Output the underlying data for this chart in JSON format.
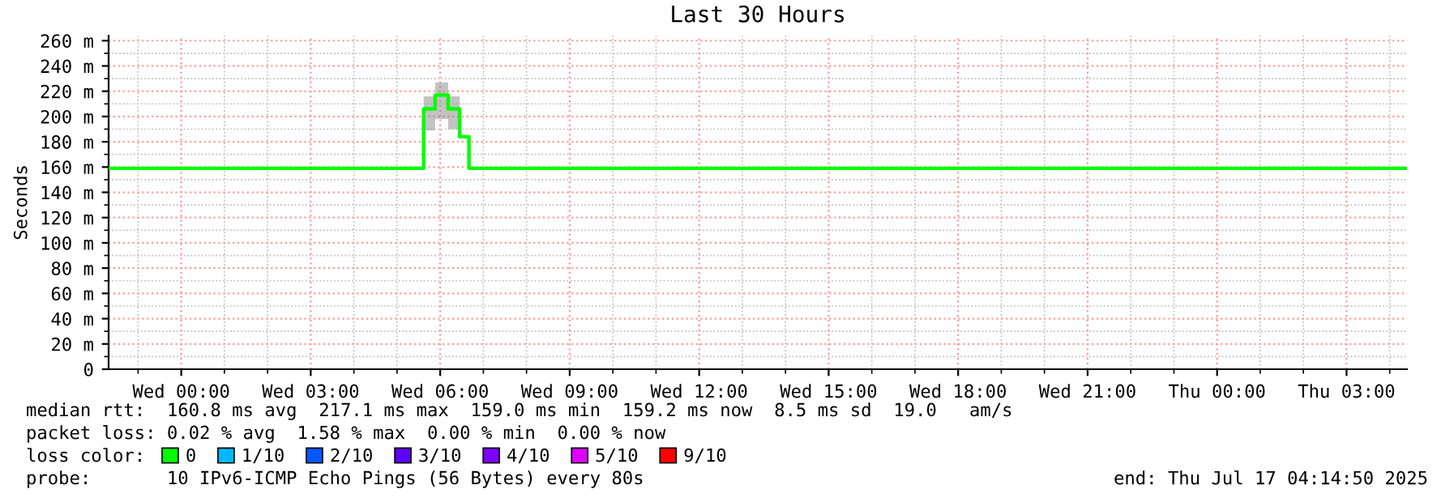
{
  "chart_data": {
    "type": "step",
    "title": "Last 30 Hours",
    "ylabel": "Seconds",
    "x": [
      "2025-07-15T22:19",
      "2025-07-16T05:37",
      "2025-07-16T05:53",
      "2025-07-16T06:11",
      "2025-07-16T06:27",
      "2025-07-16T06:40",
      "2025-07-17T04:24"
    ],
    "series": [
      {
        "name": "0",
        "color": "#00ff00",
        "values": [
          159,
          206,
          217,
          206,
          184,
          159,
          159
        ],
        "lower": [
          null,
          189,
          198,
          190,
          176,
          null,
          null
        ],
        "upper": [
          null,
          216,
          227,
          216,
          191,
          null,
          null
        ]
      },
      {
        "name": "1/10",
        "color": "#00b8ff",
        "values": [
          null,
          null,
          null,
          null,
          null,
          null,
          null
        ]
      },
      {
        "name": "2/10",
        "color": "#0059ff",
        "values": [
          null,
          null,
          null,
          null,
          null,
          null,
          null
        ]
      },
      {
        "name": "3/10",
        "color": "#5e00ff",
        "values": [
          null,
          null,
          null,
          null,
          null,
          null,
          null
        ]
      },
      {
        "name": "4/10",
        "color": "#7e00ff",
        "values": [
          null,
          null,
          null,
          null,
          null,
          null,
          null
        ]
      },
      {
        "name": "5/10",
        "color": "#dd00ff",
        "values": [
          null,
          null,
          null,
          null,
          null,
          null,
          null
        ]
      },
      {
        "name": "9/10",
        "color": "#ff0000",
        "values": [
          null,
          null,
          null,
          null,
          null,
          null,
          null
        ]
      }
    ],
    "legend_title": "loss color:",
    "legend": "bottom",
    "xlim": [
      "2025-07-15T22:19",
      "2025-07-17T04:24"
    ],
    "xticks": [
      {
        "value": "2025-07-16T00:00",
        "label": "Wed 00:00"
      },
      {
        "value": "2025-07-16T03:00",
        "label": "Wed 03:00"
      },
      {
        "value": "2025-07-16T06:00",
        "label": "Wed 06:00"
      },
      {
        "value": "2025-07-16T09:00",
        "label": "Wed 09:00"
      },
      {
        "value": "2025-07-16T12:00",
        "label": "Wed 12:00"
      },
      {
        "value": "2025-07-16T15:00",
        "label": "Wed 15:00"
      },
      {
        "value": "2025-07-16T18:00",
        "label": "Wed 18:00"
      },
      {
        "value": "2025-07-16T21:00",
        "label": "Wed 21:00"
      },
      {
        "value": "2025-07-17T00:00",
        "label": "Thu 00:00"
      },
      {
        "value": "2025-07-17T03:00",
        "label": "Thu 03:00"
      }
    ],
    "ylim": [
      0,
      264
    ],
    "yticks": [
      0,
      {
        "value": 20,
        "label": "20 m"
      },
      {
        "value": 40,
        "label": "40 m"
      },
      {
        "value": 60,
        "label": "60 m"
      },
      {
        "value": 80,
        "label": "80 m"
      },
      {
        "value": 100,
        "label": "100 m"
      },
      {
        "value": 120,
        "label": "120 m"
      },
      {
        "value": 140,
        "label": "140 m"
      },
      {
        "value": 160,
        "label": "160 m"
      },
      {
        "value": 180,
        "label": "180 m"
      },
      {
        "value": 200,
        "label": "200 m"
      },
      {
        "value": 220,
        "label": "220 m"
      },
      {
        "value": 240,
        "label": "240 m"
      },
      {
        "value": 260,
        "label": "260 m"
      }
    ],
    "grid": true,
    "annotations": [
      "median rtt:  160.8 ms avg  217.1 ms max  159.0 ms min  159.2 ms now  8.5 ms sd  19.0   am/s",
      "packet loss: 0.02 % avg  1.58 % max  0.00 % min  0.00 % now",
      "probe:       10 IPv6-ICMP Echo Pings (56 Bytes) every 80s",
      "end: Thu Jul 17 04:14:50 2025"
    ]
  }
}
